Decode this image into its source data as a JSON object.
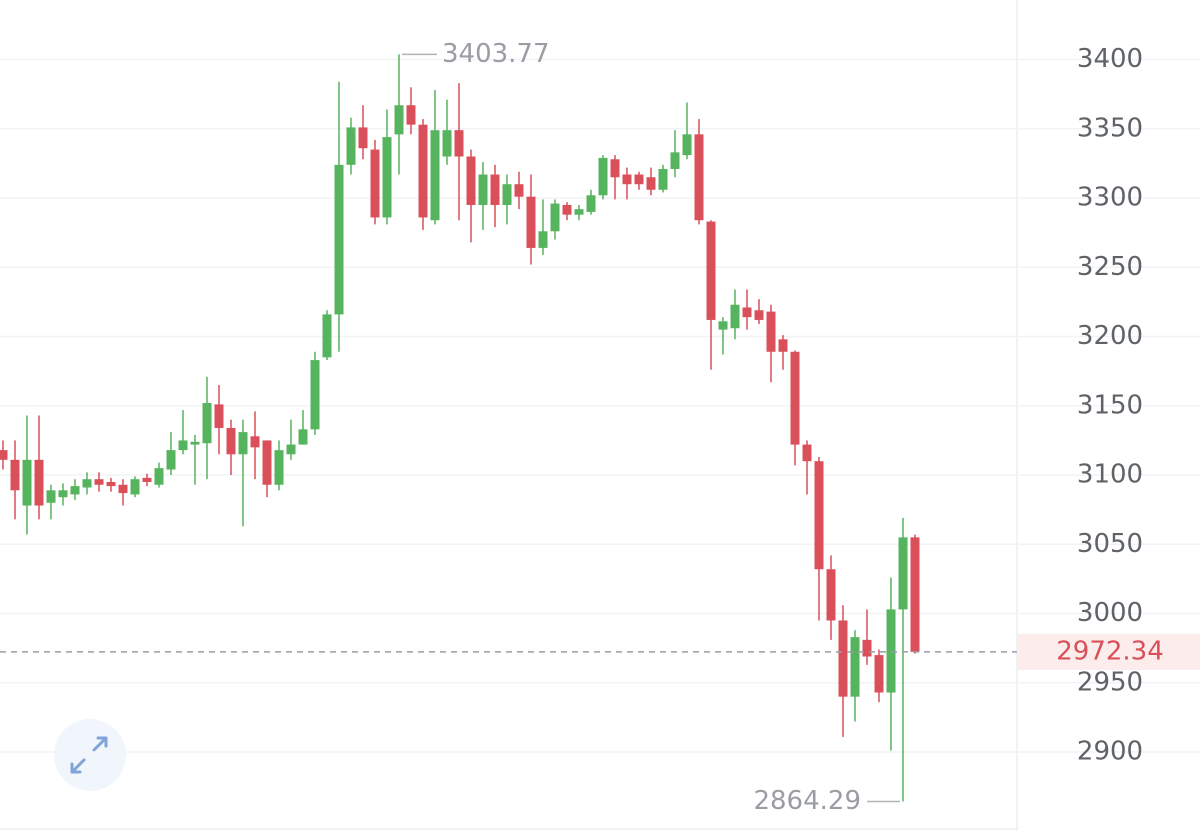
{
  "chart_data": {
    "type": "candlestick",
    "open": [
      3118,
      3111,
      3078,
      3111,
      3080,
      3084,
      3086,
      3091,
      3097,
      3095,
      3093,
      3086,
      3098,
      3093,
      3104,
      3118,
      3122,
      3123,
      3151,
      3134,
      3115,
      3128,
      3125,
      3093,
      3115,
      3122,
      3133,
      3185,
      3216,
      3324,
      3351,
      3335,
      3286,
      3346,
      3367,
      3353,
      3284,
      3330,
      3349,
      3330,
      3295,
      3317,
      3295,
      3310,
      3301,
      3264,
      3276,
      3295,
      3288,
      3290,
      3302,
      3328,
      3317,
      3317,
      3315,
      3306,
      3321,
      3331,
      3346,
      3283,
      3205,
      3206,
      3221,
      3219,
      3218,
      3198,
      3189,
      3122,
      3110,
      3032,
      2995,
      2940,
      2981,
      2970,
      2943,
      3003,
      3055
    ],
    "high": [
      3125,
      3125,
      3143,
      3143,
      3093,
      3094,
      3097,
      3102,
      3102,
      3098,
      3097,
      3099,
      3101,
      3109,
      3131,
      3147,
      3129,
      3171,
      3165,
      3140,
      3140,
      3146,
      3125,
      3125,
      3140,
      3147,
      3189,
      3219,
      3384,
      3358,
      3367,
      3342,
      3364,
      3403.77,
      3380,
      3357,
      3378,
      3371,
      3383,
      3335,
      3326,
      3324,
      3317,
      3319,
      3317,
      3299,
      3299,
      3297,
      3295,
      3306,
      3331,
      3331,
      3322,
      3319,
      3322,
      3324,
      3349,
      3369,
      3357,
      3284,
      3214,
      3234,
      3234,
      3227,
      3223,
      3201,
      3190,
      3125,
      3113,
      3042,
      3006,
      2988,
      3003,
      2974,
      3026,
      3069,
      3057
    ],
    "low": [
      3104,
      3068,
      3057,
      3068,
      3068,
      3078,
      3082,
      3086,
      3088,
      3088,
      3078,
      3084,
      3092,
      3091,
      3100,
      3115,
      3093,
      3097,
      3115,
      3100,
      3063,
      3097,
      3084,
      3089,
      3111,
      3122,
      3129,
      3183,
      3189,
      3317,
      3328,
      3281,
      3281,
      3317,
      3346,
      3277,
      3281,
      3324,
      3284,
      3268,
      3277,
      3279,
      3281,
      3292,
      3252,
      3259,
      3270,
      3284,
      3284,
      3288,
      3299,
      3299,
      3299,
      3306,
      3302,
      3304,
      3315,
      3328,
      3281,
      3176,
      3187,
      3198,
      3205,
      3209,
      3167,
      3176,
      3107,
      3086,
      2995,
      2981,
      2911,
      2922,
      2963,
      2936,
      2901,
      2864.29,
      2971
    ],
    "close": [
      3111,
      3089,
      3111,
      3078,
      3089,
      3089,
      3092,
      3097,
      3093,
      3092,
      3087,
      3097,
      3095,
      3105,
      3118,
      3125,
      3124,
      3152,
      3134,
      3115,
      3131,
      3120,
      3093,
      3118,
      3122,
      3133,
      3183,
      3216,
      3324,
      3351,
      3336,
      3286,
      3344,
      3367,
      3353,
      3286,
      3349,
      3349,
      3330,
      3295,
      3317,
      3295,
      3310,
      3301,
      3264,
      3276,
      3296,
      3288,
      3292,
      3302,
      3329,
      3315,
      3310,
      3310,
      3306,
      3321,
      3333,
      3346,
      3284,
      3212,
      3211,
      3223,
      3214,
      3212,
      3189,
      3189,
      3122,
      3110,
      3032,
      2995,
      2940,
      2983,
      2969,
      2943,
      3003,
      3055,
      2972.34
    ],
    "up_color": "#56b35e",
    "down_color": "#d9505a",
    "ylim": [
      2843,
      3443
    ],
    "yticks": [
      2900,
      2950,
      3000,
      3050,
      3100,
      3150,
      3200,
      3250,
      3300,
      3350,
      3400
    ],
    "grid": true
  }
}
